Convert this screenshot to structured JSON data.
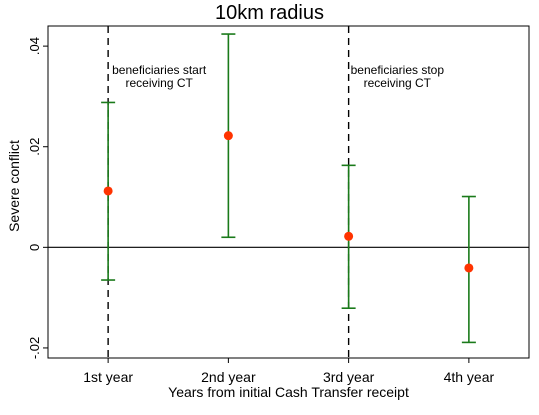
{
  "chart_data": {
    "type": "scatter",
    "title": "10km radius",
    "xlabel": "Years from initial Cash Transfer receipt",
    "ylabel": "Severe conflict",
    "categories": [
      "1st year",
      "2nd year",
      "3rd year",
      "4th year"
    ],
    "series": [
      {
        "values": [
          0.0112,
          0.0222,
          0.0022,
          -0.0041
        ],
        "ci_low": [
          -0.0065,
          0.002,
          -0.0121,
          -0.0189
        ],
        "ci_high": [
          0.0288,
          0.0424,
          0.0163,
          0.0101
        ]
      }
    ],
    "ylim": [
      -0.022,
      0.044
    ],
    "yticks": [
      -0.02,
      0,
      0.02,
      0.04
    ],
    "ytick_labels": [
      "-.02",
      "0",
      ".02",
      ".04"
    ],
    "reference_line_y": 0,
    "vlines": [
      0.5,
      2.5
    ],
    "annotations": [
      {
        "lines": [
          "beneficiaries start",
          "receiving CT"
        ]
      },
      {
        "lines": [
          "beneficiaries stop",
          "receiving CT"
        ]
      }
    ],
    "grid": false,
    "colors": {
      "point": "#ff3300",
      "ci": "#1a7a1a",
      "axis": "#000000"
    }
  }
}
